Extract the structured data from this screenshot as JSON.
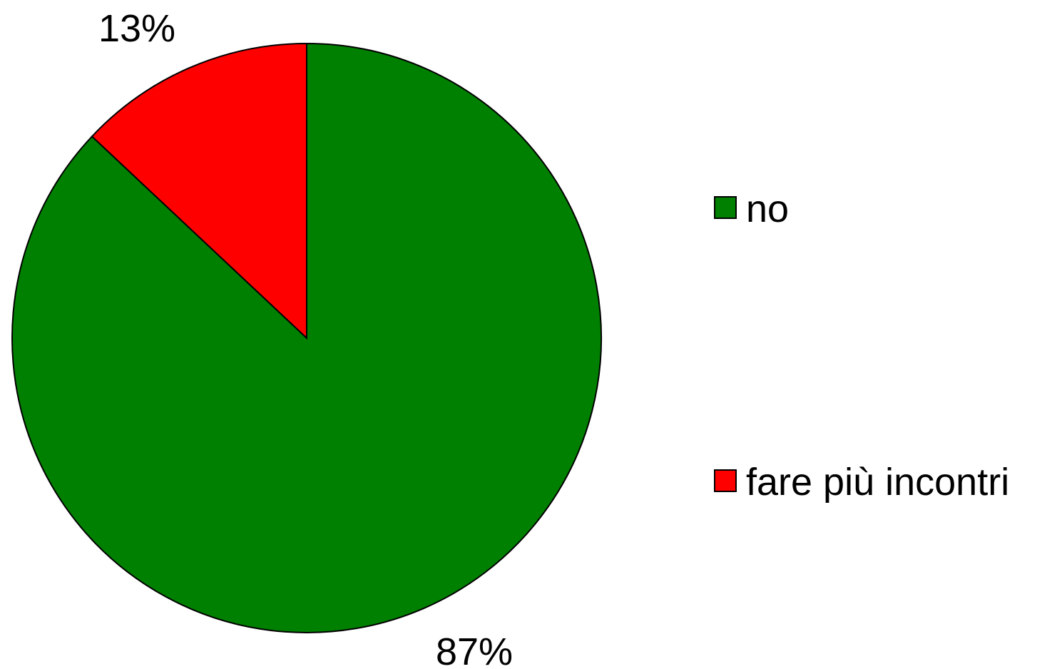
{
  "chart_data": {
    "type": "pie",
    "title": "",
    "slices": [
      {
        "label": "no",
        "value": 87,
        "value_label": "87%",
        "color": "#008000"
      },
      {
        "label": "fare più incontri",
        "value": 13,
        "value_label": "13%",
        "color": "#ff0000"
      }
    ],
    "start_angle_deg": 0,
    "direction": "clockwise",
    "legend": {
      "placement": "right",
      "items": [
        {
          "label": "no",
          "color": "#008000"
        },
        {
          "label": "fare più incontri",
          "color": "#ff0000"
        }
      ]
    }
  }
}
